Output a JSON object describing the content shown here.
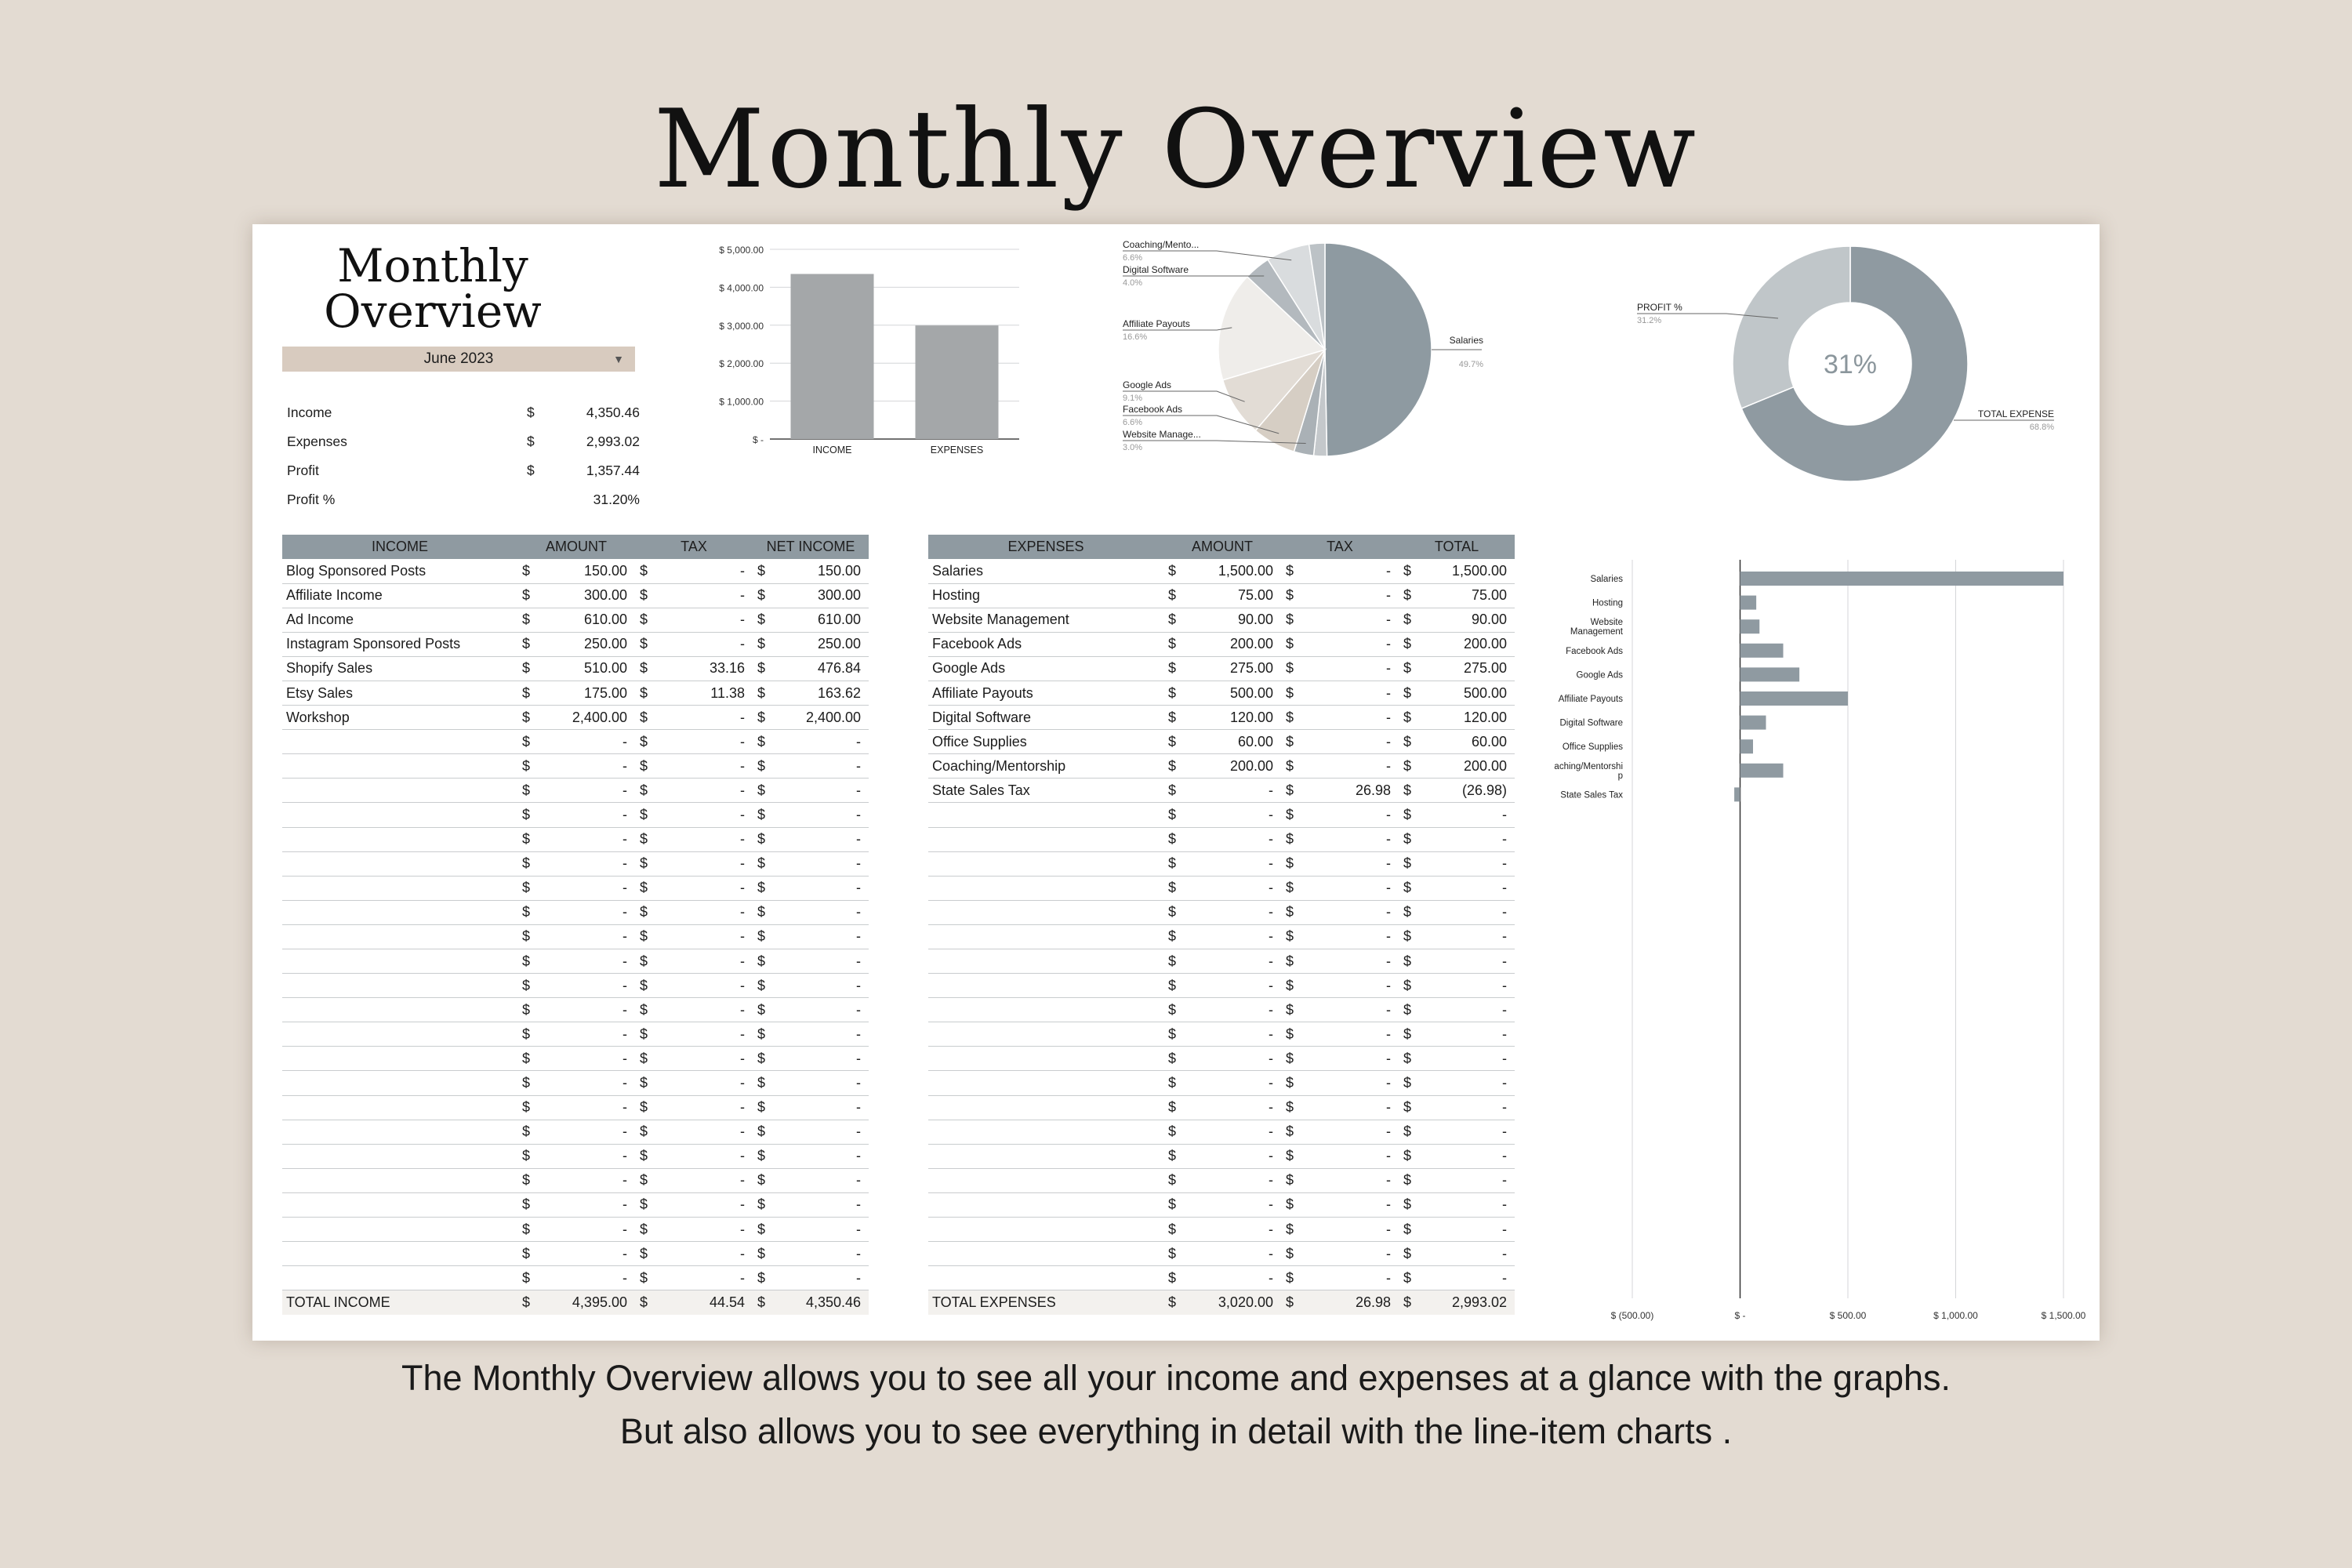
{
  "page": {
    "title": "Monthly Overview",
    "caption_lines": [
      "The Monthly Overview allows you to see all your income and expenses at a glance with the graphs.",
      "But also allows you to see everything in detail with the line-item charts ."
    ]
  },
  "sheet": {
    "title_line1": "Monthly",
    "title_line2": "Overview",
    "month": "June 2023",
    "summary": [
      {
        "label": "Income",
        "currency": "$",
        "value": "4,350.46"
      },
      {
        "label": "Expenses",
        "currency": "$",
        "value": "2,993.02"
      },
      {
        "label": "Profit",
        "currency": "$",
        "value": "1,357.44"
      },
      {
        "label": "Profit %",
        "currency": "",
        "value": "31.20%"
      }
    ]
  },
  "income_table": {
    "headers": [
      "INCOME",
      "AMOUNT",
      "TAX",
      "NET INCOME"
    ],
    "rows": [
      [
        "Blog Sponsored Posts",
        "150.00",
        "-",
        "150.00"
      ],
      [
        "Affiliate Income",
        "300.00",
        "-",
        "300.00"
      ],
      [
        "Ad Income",
        "610.00",
        "-",
        "610.00"
      ],
      [
        "Instagram Sponsored Posts",
        "250.00",
        "-",
        "250.00"
      ],
      [
        "Shopify Sales",
        "510.00",
        "33.16",
        "476.84"
      ],
      [
        "Etsy Sales",
        "175.00",
        "11.38",
        "163.62"
      ],
      [
        "Workshop",
        "2,400.00",
        "-",
        "2,400.00"
      ]
    ],
    "blank_rows": 23,
    "total": [
      "TOTAL INCOME",
      "4,395.00",
      "44.54",
      "4,350.46"
    ]
  },
  "expense_table": {
    "headers": [
      "EXPENSES",
      "AMOUNT",
      "TAX",
      "TOTAL"
    ],
    "rows": [
      [
        "Salaries",
        "1,500.00",
        "-",
        "1,500.00"
      ],
      [
        "Hosting",
        "75.00",
        "-",
        "75.00"
      ],
      [
        "Website Management",
        "90.00",
        "-",
        "90.00"
      ],
      [
        "Facebook Ads",
        "200.00",
        "-",
        "200.00"
      ],
      [
        "Google Ads",
        "275.00",
        "-",
        "275.00"
      ],
      [
        "Affiliate Payouts",
        "500.00",
        "-",
        "500.00"
      ],
      [
        "Digital Software",
        "120.00",
        "-",
        "120.00"
      ],
      [
        "Office Supplies",
        "60.00",
        "-",
        "60.00"
      ],
      [
        "Coaching/Mentorship",
        "200.00",
        "-",
        "200.00"
      ],
      [
        "State Sales Tax",
        "-",
        "26.98",
        "(26.98)"
      ]
    ],
    "blank_rows": 20,
    "total": [
      "TOTAL EXPENSES",
      "3,020.00",
      "26.98",
      "2,993.02"
    ]
  },
  "chart_data": [
    {
      "type": "bar",
      "categories": [
        "INCOME",
        "EXPENSES"
      ],
      "values": [
        4350.46,
        2993.02
      ],
      "ylim": [
        0,
        5000
      ],
      "ytick_labels": [
        "$ -",
        "$ 1,000.00",
        "$ 2,000.00",
        "$ 3,000.00",
        "$ 4,000.00",
        "$ 5,000.00"
      ],
      "grid": true,
      "color": "#a4a7a9"
    },
    {
      "type": "pie",
      "slices": [
        {
          "label": "Salaries",
          "pct": "49.7%",
          "value": 49.7,
          "color": "#8e9aa1"
        },
        {
          "label": "",
          "pct": "",
          "value": 2.0,
          "color": "#c4c8cb"
        },
        {
          "label": "Website Manage...",
          "pct": "3.0%",
          "value": 3.0,
          "color": "#aab1b6"
        },
        {
          "label": "Facebook Ads",
          "pct": "6.6%",
          "value": 6.6,
          "color": "#d6cec4"
        },
        {
          "label": "Google Ads",
          "pct": "9.1%",
          "value": 9.1,
          "color": "#e2dcd5"
        },
        {
          "label": "Affiliate Payouts",
          "pct": "16.6%",
          "value": 16.6,
          "color": "#efedea"
        },
        {
          "label": "Digital Software",
          "pct": "4.0%",
          "value": 4.0,
          "color": "#b3b9be"
        },
        {
          "label": "Coaching/Mento...",
          "pct": "6.6%",
          "value": 6.6,
          "color": "#d9dcde"
        },
        {
          "label": "",
          "pct": "",
          "value": 2.4,
          "color": "#bcc2c6"
        }
      ]
    },
    {
      "type": "pie",
      "donut": true,
      "center_label": "31%",
      "slices": [
        {
          "label": "TOTAL EXPENSE",
          "pct": "68.8%",
          "value": 68.8,
          "color": "#8f9aa1"
        },
        {
          "label": "PROFIT %",
          "pct": "31.2%",
          "value": 31.2,
          "color": "#c0c6c9"
        }
      ]
    },
    {
      "type": "bar",
      "orientation": "horizontal",
      "categories": [
        "Salaries",
        "Hosting",
        "Website\nManagement",
        "Facebook Ads",
        "Google Ads",
        "Affiliate Payouts",
        "Digital Software",
        "Office Supplies",
        "Coaching/Mentorshi\np",
        "State Sales Tax"
      ],
      "values": [
        1500,
        75,
        90,
        200,
        275,
        500,
        120,
        60,
        200,
        -26.98
      ],
      "xlim": [
        -500,
        1500
      ],
      "xtick_values": [
        -500,
        0,
        500,
        1000,
        1500
      ],
      "xtick_labels": [
        "$ (500.00)",
        "$ -",
        "$ 500.00",
        "$ 1,000.00",
        "$ 1,500.00"
      ],
      "grid": true,
      "color": "#8f9aa1"
    }
  ]
}
